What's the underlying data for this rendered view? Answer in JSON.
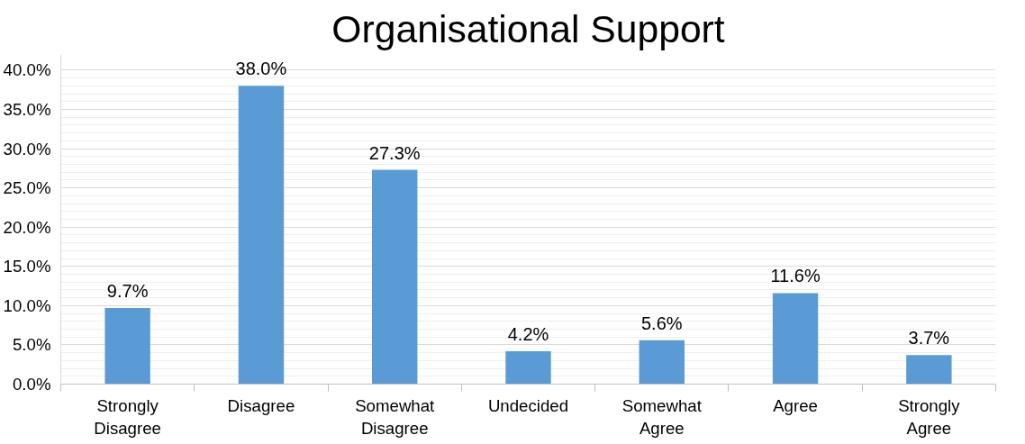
{
  "chart_data": {
    "type": "bar",
    "title": "Organisational Support",
    "categories": [
      "Strongly Disagree",
      "Disagree",
      "Somewhat Disagree",
      "Undecided",
      "Somewhat Agree",
      "Agree",
      "Strongly Agree"
    ],
    "values": [
      9.7,
      38.0,
      27.3,
      4.2,
      5.6,
      11.6,
      3.7
    ],
    "value_labels": [
      "9.7%",
      "38.0%",
      "27.3%",
      "4.2%",
      "5.6%",
      "11.6%",
      "3.7%"
    ],
    "color": "#5b9bd5",
    "ylim": [
      0,
      42
    ],
    "yticks": [
      {
        "value": 0,
        "label": "0.0%"
      },
      {
        "value": 5,
        "label": "5.0%"
      },
      {
        "value": 10,
        "label": "10.0%"
      },
      {
        "value": 15,
        "label": "15.0%"
      },
      {
        "value": 20,
        "label": "20.0%"
      },
      {
        "value": 25,
        "label": "25.0%"
      },
      {
        "value": 30,
        "label": "30.0%"
      },
      {
        "value": 35,
        "label": "35.0%"
      },
      {
        "value": 40,
        "label": "40.0%"
      }
    ],
    "grid": "y"
  }
}
